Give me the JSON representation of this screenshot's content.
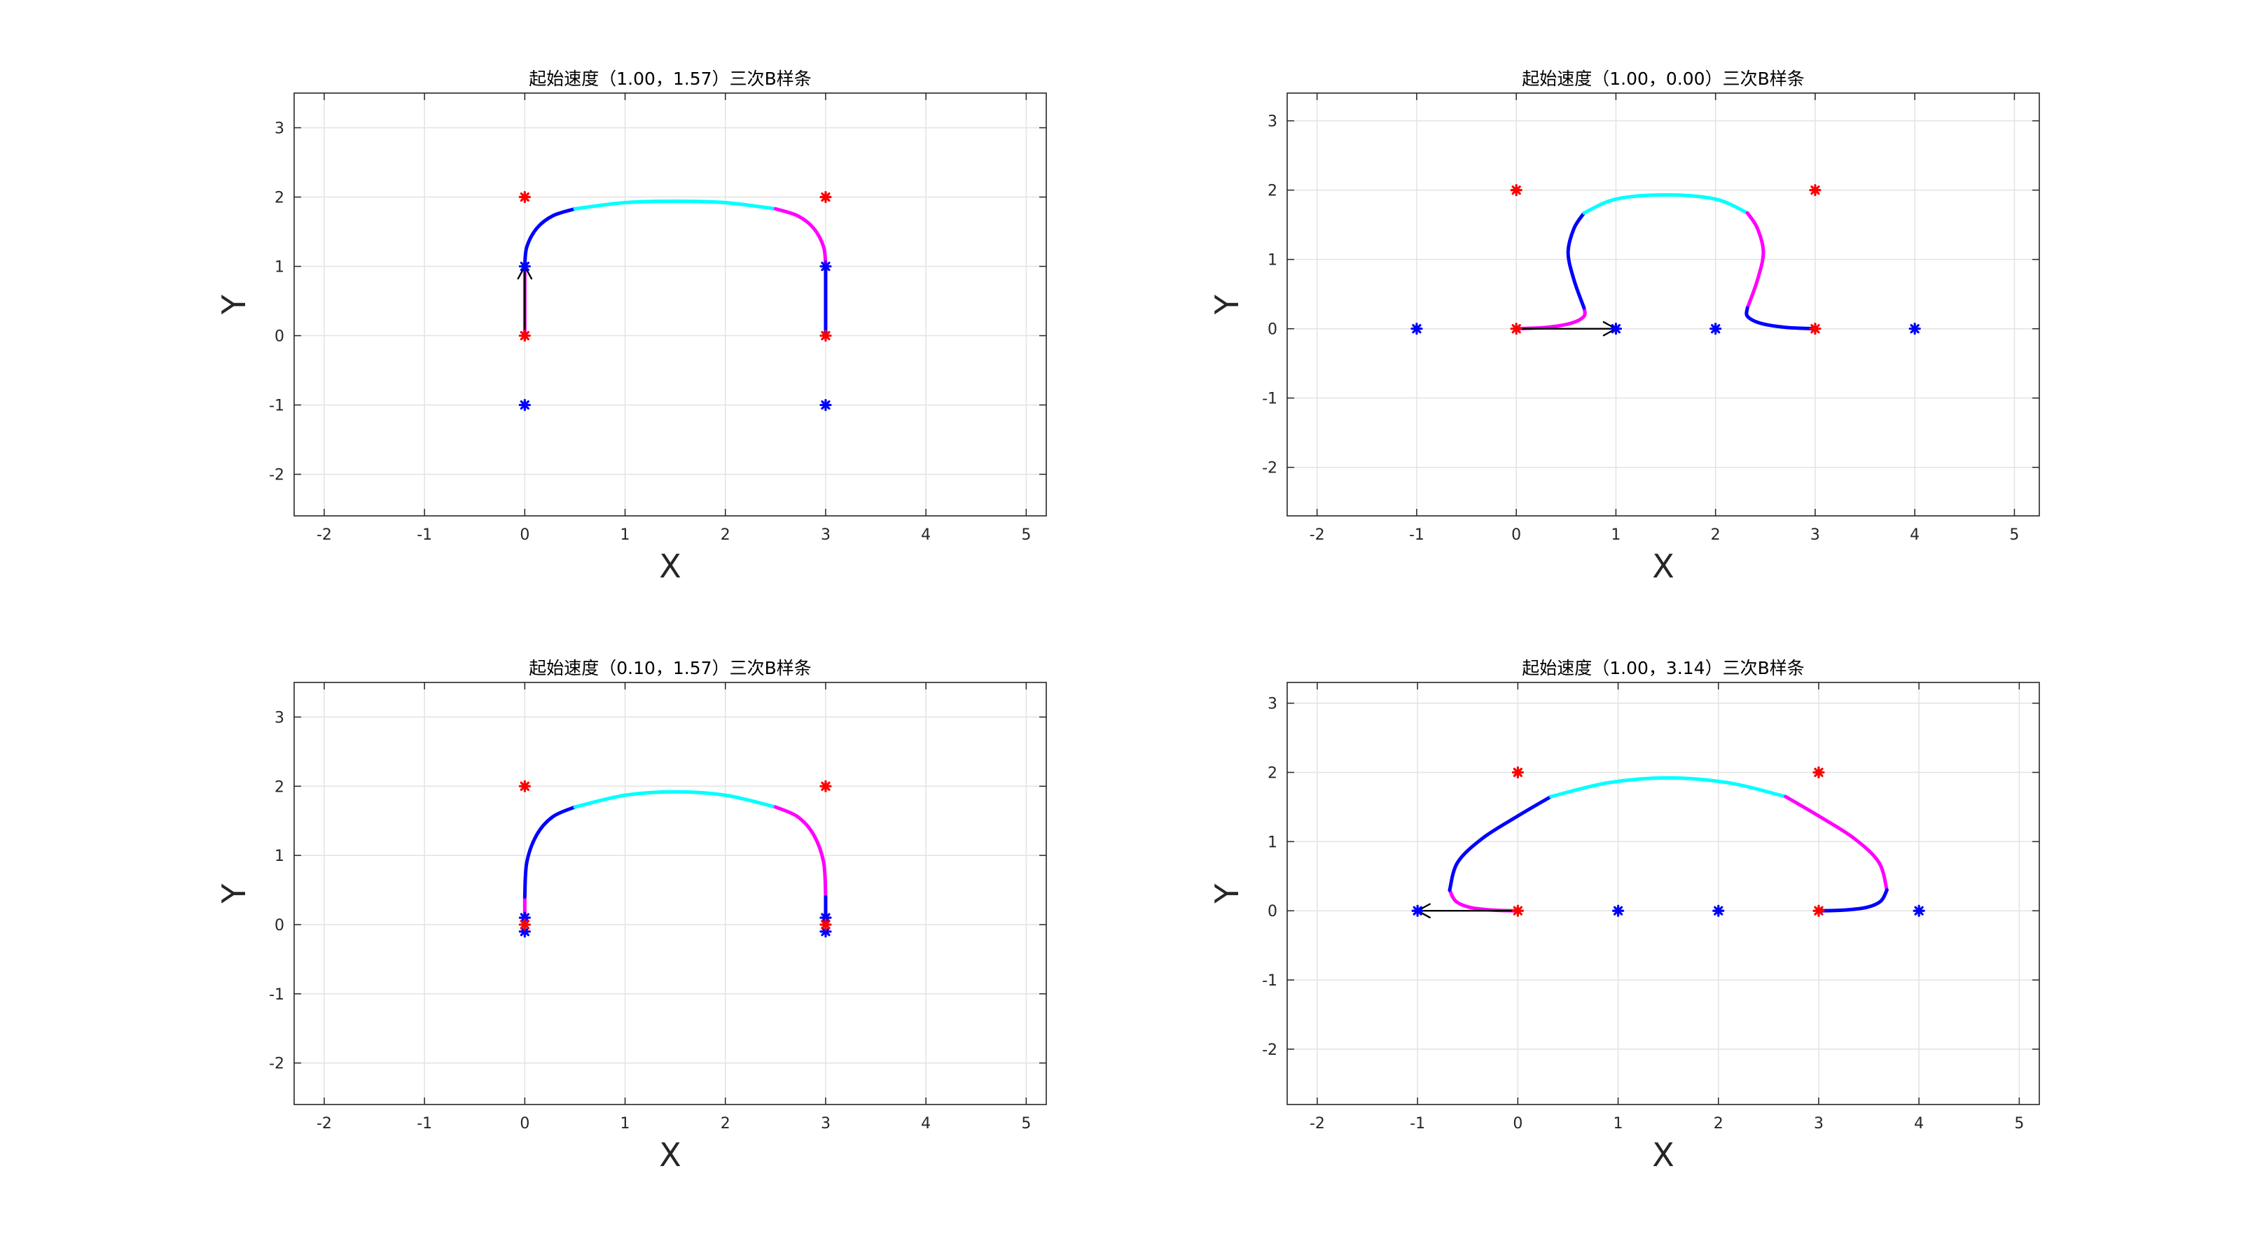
{
  "chart_data": [
    {
      "type": "line",
      "title": "起始速度（1.00，1.57）三次B样条",
      "xlabel": "X",
      "ylabel": "Y",
      "xlim": [
        -2.3,
        5.2
      ],
      "ylim": [
        -2.6,
        3.5
      ],
      "xticks": [
        -2,
        -1,
        0,
        1,
        2,
        3,
        4,
        5
      ],
      "yticks": [
        -2,
        -1,
        0,
        1,
        2,
        3
      ],
      "xtick_labels": [
        "-2",
        "-1",
        "0",
        "1",
        "2",
        "3",
        "4",
        "5"
      ],
      "ytick_labels": [
        "-2",
        "-1",
        "0",
        "1",
        "2",
        "3"
      ],
      "grid": true,
      "red_points": [
        [
          0,
          0
        ],
        [
          0,
          2
        ],
        [
          3,
          2
        ],
        [
          3,
          0
        ]
      ],
      "blue_points": [
        [
          0,
          -1
        ],
        [
          0,
          1
        ],
        [
          3,
          1
        ],
        [
          3,
          -1
        ]
      ],
      "start_arrow": {
        "from": [
          0,
          0
        ],
        "to": [
          0,
          1
        ]
      },
      "segments": [
        {
          "color": "#ff00ff",
          "points": [
            [
              0,
              0
            ],
            [
              0,
              0.25
            ],
            [
              0,
              0.5
            ],
            [
              0,
              0.75
            ],
            [
              0,
              1.0
            ]
          ]
        },
        {
          "color": "#0000ff",
          "points": [
            [
              0,
              1.0
            ],
            [
              0.02,
              1.28
            ],
            [
              0.12,
              1.55
            ],
            [
              0.28,
              1.73
            ],
            [
              0.5,
              1.83
            ]
          ]
        },
        {
          "color": "#00ffff",
          "points": [
            [
              0.5,
              1.83
            ],
            [
              1.0,
              1.92
            ],
            [
              1.5,
              1.94
            ],
            [
              2.0,
              1.92
            ],
            [
              2.5,
              1.83
            ]
          ]
        },
        {
          "color": "#ff00ff",
          "points": [
            [
              2.5,
              1.83
            ],
            [
              2.72,
              1.73
            ],
            [
              2.88,
              1.55
            ],
            [
              2.98,
              1.28
            ],
            [
              3.0,
              1.0
            ]
          ]
        },
        {
          "color": "#0000ff",
          "points": [
            [
              3.0,
              1.0
            ],
            [
              3.0,
              0.75
            ],
            [
              3.0,
              0.5
            ],
            [
              3.0,
              0.25
            ],
            [
              3.0,
              0
            ]
          ]
        }
      ]
    },
    {
      "type": "line",
      "title": "起始速度（1.00，0.00）三次B样条",
      "xlabel": "X",
      "ylabel": "Y",
      "xlim": [
        -2.3,
        5.25
      ],
      "ylim": [
        -2.7,
        3.4
      ],
      "xticks": [
        -2,
        -1,
        0,
        1,
        2,
        3,
        4,
        5
      ],
      "yticks": [
        -2,
        -1,
        0,
        1,
        2,
        3
      ],
      "xtick_labels": [
        "-2",
        "-1",
        "0",
        "1",
        "2",
        "3",
        "4",
        "5"
      ],
      "ytick_labels": [
        "-2",
        "-1",
        "0",
        "1",
        "2",
        "3"
      ],
      "grid": true,
      "red_points": [
        [
          0,
          0
        ],
        [
          0,
          2
        ],
        [
          3,
          2
        ],
        [
          3,
          0
        ]
      ],
      "blue_points": [
        [
          -1,
          0
        ],
        [
          1,
          0
        ],
        [
          2,
          0
        ],
        [
          4,
          0
        ]
      ],
      "start_arrow": {
        "from": [
          0,
          0
        ],
        "to": [
          1,
          0
        ]
      },
      "segments": [
        {
          "color": "#ff00ff",
          "points": [
            [
              0,
              0
            ],
            [
              0.3,
              0.02
            ],
            [
              0.55,
              0.08
            ],
            [
              0.68,
              0.18
            ],
            [
              0.68,
              0.3
            ]
          ]
        },
        {
          "color": "#0000ff",
          "points": [
            [
              0.68,
              0.3
            ],
            [
              0.58,
              0.7
            ],
            [
              0.52,
              1.1
            ],
            [
              0.58,
              1.45
            ],
            [
              0.68,
              1.67
            ]
          ]
        },
        {
          "color": "#00ffff",
          "points": [
            [
              0.68,
              1.67
            ],
            [
              1.0,
              1.87
            ],
            [
              1.5,
              1.93
            ],
            [
              2.0,
              1.87
            ],
            [
              2.32,
              1.67
            ]
          ]
        },
        {
          "color": "#ff00ff",
          "points": [
            [
              2.32,
              1.67
            ],
            [
              2.42,
              1.45
            ],
            [
              2.48,
              1.1
            ],
            [
              2.42,
              0.7
            ],
            [
              2.32,
              0.3
            ]
          ]
        },
        {
          "color": "#0000ff",
          "points": [
            [
              2.32,
              0.3
            ],
            [
              2.32,
              0.18
            ],
            [
              2.45,
              0.08
            ],
            [
              2.7,
              0.02
            ],
            [
              3.0,
              0
            ]
          ]
        }
      ]
    },
    {
      "type": "line",
      "title": "起始速度（0.10，1.57）三次B样条",
      "xlabel": "X",
      "ylabel": "Y",
      "xlim": [
        -2.3,
        5.2
      ],
      "ylim": [
        -2.6,
        3.5
      ],
      "xticks": [
        -2,
        -1,
        0,
        1,
        2,
        3,
        4,
        5
      ],
      "yticks": [
        -2,
        -1,
        0,
        1,
        2,
        3
      ],
      "xtick_labels": [
        "-2",
        "-1",
        "0",
        "1",
        "2",
        "3",
        "4",
        "5"
      ],
      "ytick_labels": [
        "-2",
        "-1",
        "0",
        "1",
        "2",
        "3"
      ],
      "grid": true,
      "red_points": [
        [
          0,
          0
        ],
        [
          0,
          2
        ],
        [
          3,
          2
        ],
        [
          3,
          0
        ]
      ],
      "blue_points": [
        [
          0,
          -0.1
        ],
        [
          0,
          0.1
        ],
        [
          3,
          0.1
        ],
        [
          3,
          -0.1
        ]
      ],
      "start_arrow": null,
      "segments": [
        {
          "color": "#ff00ff",
          "points": [
            [
              0,
              0
            ],
            [
              0,
              0.1
            ],
            [
              0,
              0.2
            ],
            [
              0,
              0.3
            ],
            [
              0,
              0.4
            ]
          ]
        },
        {
          "color": "#0000ff",
          "points": [
            [
              0,
              0.4
            ],
            [
              0.02,
              0.9
            ],
            [
              0.12,
              1.3
            ],
            [
              0.28,
              1.56
            ],
            [
              0.5,
              1.7
            ]
          ]
        },
        {
          "color": "#00ffff",
          "points": [
            [
              0.5,
              1.7
            ],
            [
              1.0,
              1.87
            ],
            [
              1.5,
              1.92
            ],
            [
              2.0,
              1.87
            ],
            [
              2.5,
              1.7
            ]
          ]
        },
        {
          "color": "#ff00ff",
          "points": [
            [
              2.5,
              1.7
            ],
            [
              2.72,
              1.56
            ],
            [
              2.88,
              1.3
            ],
            [
              2.98,
              0.9
            ],
            [
              3.0,
              0.4
            ]
          ]
        },
        {
          "color": "#0000ff",
          "points": [
            [
              3.0,
              0.4
            ],
            [
              3.0,
              0.3
            ],
            [
              3.0,
              0.2
            ],
            [
              3.0,
              0.1
            ],
            [
              3.0,
              0
            ]
          ]
        }
      ]
    },
    {
      "type": "line",
      "title": "起始速度（1.00，3.14）三次B样条",
      "xlabel": "X",
      "ylabel": "Y",
      "xlim": [
        -2.3,
        5.2
      ],
      "ylim": [
        -2.8,
        3.3
      ],
      "xticks": [
        -2,
        -1,
        0,
        1,
        2,
        3,
        4,
        5
      ],
      "yticks": [
        -2,
        -1,
        0,
        1,
        2,
        3
      ],
      "xtick_labels": [
        "-2",
        "-1",
        "0",
        "1",
        "2",
        "3",
        "4",
        "5"
      ],
      "ytick_labels": [
        "-2",
        "-1",
        "0",
        "1",
        "2",
        "3"
      ],
      "grid": true,
      "red_points": [
        [
          0,
          0
        ],
        [
          0,
          2
        ],
        [
          3,
          2
        ],
        [
          3,
          0
        ]
      ],
      "blue_points": [
        [
          -1,
          0
        ],
        [
          1,
          0
        ],
        [
          2,
          0
        ],
        [
          4,
          0
        ]
      ],
      "start_arrow": {
        "from": [
          0,
          0
        ],
        "to": [
          -1,
          0
        ]
      },
      "segments": [
        {
          "color": "#ff00ff",
          "points": [
            [
              0,
              0
            ],
            [
              -0.25,
              0.01
            ],
            [
              -0.48,
              0.05
            ],
            [
              -0.62,
              0.14
            ],
            [
              -0.68,
              0.3
            ]
          ]
        },
        {
          "color": "#0000ff",
          "points": [
            [
              -0.68,
              0.3
            ],
            [
              -0.6,
              0.7
            ],
            [
              -0.35,
              1.05
            ],
            [
              0.0,
              1.37
            ],
            [
              0.33,
              1.65
            ]
          ]
        },
        {
          "color": "#00ffff",
          "points": [
            [
              0.33,
              1.65
            ],
            [
              0.9,
              1.85
            ],
            [
              1.5,
              1.92
            ],
            [
              2.1,
              1.85
            ],
            [
              2.67,
              1.65
            ]
          ]
        },
        {
          "color": "#ff00ff",
          "points": [
            [
              2.67,
              1.65
            ],
            [
              3.0,
              1.37
            ],
            [
              3.35,
              1.05
            ],
            [
              3.6,
              0.7
            ],
            [
              3.68,
              0.3
            ]
          ]
        },
        {
          "color": "#0000ff",
          "points": [
            [
              3.68,
              0.3
            ],
            [
              3.62,
              0.14
            ],
            [
              3.48,
              0.05
            ],
            [
              3.25,
              0.01
            ],
            [
              3.0,
              0
            ]
          ]
        }
      ]
    }
  ]
}
